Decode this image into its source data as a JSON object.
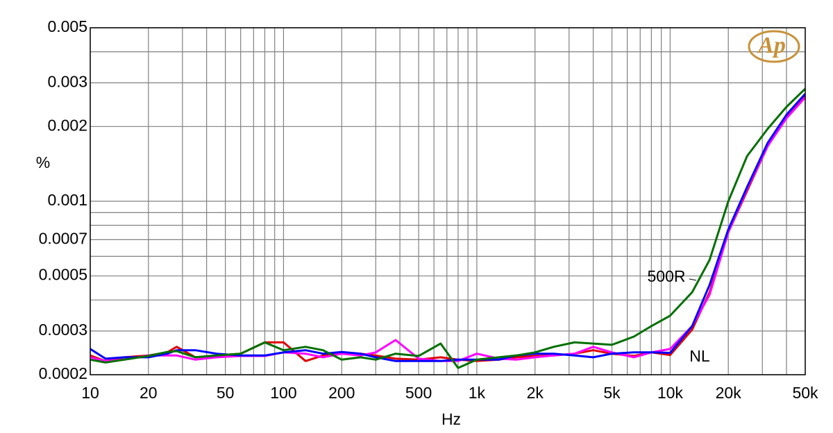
{
  "chart_data": {
    "type": "line",
    "x_label": "Hz",
    "y_label": "%",
    "logo": "Ap",
    "annotations": [
      "500R",
      "NL"
    ],
    "xscale": "log",
    "yscale": "log",
    "grid": true,
    "xlim": [
      10,
      50000
    ],
    "ylim": [
      0.0002,
      0.005
    ],
    "xticks": [
      10,
      20,
      50,
      100,
      200,
      500,
      {
        "value": 1000,
        "label": "1k"
      },
      {
        "value": 2000,
        "label": "2k"
      },
      {
        "value": 5000,
        "label": "5k"
      },
      {
        "value": 10000,
        "label": "10k"
      },
      {
        "value": 20000,
        "label": "20k"
      },
      {
        "value": 50000,
        "label": "50k"
      }
    ],
    "xminor": [
      30,
      40,
      60,
      70,
      80,
      90,
      300,
      400,
      600,
      700,
      800,
      900,
      3000,
      4000,
      6000,
      7000,
      8000,
      9000,
      30000,
      40000
    ],
    "yticks": [
      0.005,
      0.003,
      0.002,
      0.001,
      0.0007,
      0.0005,
      0.0003,
      0.0002
    ],
    "yminor": [
      0.004,
      0.0009,
      0.0008,
      0.0006,
      0.0004
    ],
    "x": [
      10,
      12,
      15,
      20,
      25,
      28,
      35,
      45,
      60,
      80,
      100,
      130,
      160,
      200,
      250,
      300,
      380,
      500,
      650,
      800,
      1000,
      1300,
      1600,
      2000,
      2500,
      3200,
      4000,
      5000,
      6500,
      8000,
      10000,
      13000,
      16000,
      20000,
      25000,
      32000,
      40000,
      50000
    ],
    "series": [
      {
        "color": "#e00000",
        "values": [
          0.000239,
          0.000227,
          0.000235,
          0.000239,
          0.000246,
          0.000259,
          0.000235,
          0.000239,
          0.000243,
          0.00027,
          0.00027,
          0.000227,
          0.000239,
          0.000246,
          0.000243,
          0.000239,
          0.000232,
          0.00023,
          0.000235,
          0.00023,
          0.000227,
          0.00023,
          0.000235,
          0.000238,
          0.000239,
          0.000243,
          0.000251,
          0.000243,
          0.000238,
          0.000246,
          0.00024,
          0.000304,
          0.00043,
          0.00075,
          0.0011,
          0.00167,
          0.00218,
          0.00265
        ]
      },
      {
        "color": "#ff00ff",
        "values": [
          0.000235,
          0.000227,
          0.00023,
          0.000239,
          0.000239,
          0.000239,
          0.00023,
          0.000235,
          0.000238,
          0.000238,
          0.000246,
          0.000243,
          0.000235,
          0.000243,
          0.000239,
          0.000246,
          0.000276,
          0.000232,
          0.000227,
          0.000227,
          0.000243,
          0.000232,
          0.00023,
          0.000235,
          0.000239,
          0.000243,
          0.000259,
          0.000246,
          0.000235,
          0.000246,
          0.000254,
          0.000314,
          0.00042,
          0.00075,
          0.00112,
          0.00167,
          0.00216,
          0.00262
        ]
      },
      {
        "color": "#0000ff",
        "values": [
          0.000254,
          0.000232,
          0.000235,
          0.000235,
          0.000243,
          0.000251,
          0.000251,
          0.000243,
          0.000239,
          0.000239,
          0.000246,
          0.000251,
          0.000243,
          0.000247,
          0.000243,
          0.000235,
          0.000227,
          0.000227,
          0.000227,
          0.00023,
          0.00023,
          0.00023,
          0.000239,
          0.000243,
          0.000243,
          0.000239,
          0.000235,
          0.000243,
          0.000246,
          0.000246,
          0.000245,
          0.000314,
          0.00046,
          0.00077,
          0.00114,
          0.00172,
          0.00223,
          0.00271
        ]
      },
      {
        "color": "#007000",
        "values": [
          0.00023,
          0.000224,
          0.00023,
          0.000238,
          0.000247,
          0.000249,
          0.000235,
          0.000239,
          0.000243,
          0.00027,
          0.000251,
          0.000259,
          0.000251,
          0.00023,
          0.000235,
          0.00023,
          0.000243,
          0.000238,
          0.000267,
          0.000213,
          0.00023,
          0.000235,
          0.000239,
          0.000246,
          0.000259,
          0.00027,
          0.000267,
          0.000264,
          0.000285,
          0.000314,
          0.000346,
          0.00043,
          0.00058,
          0.001,
          0.00152,
          0.00196,
          0.0024,
          0.00284
        ]
      }
    ]
  }
}
